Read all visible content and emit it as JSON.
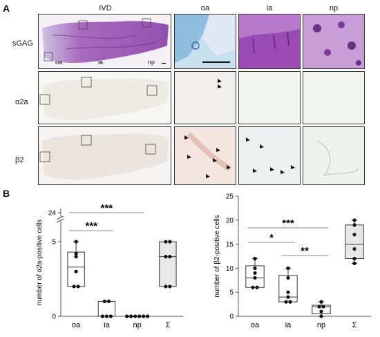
{
  "panel_a": {
    "letter": "A",
    "columns": [
      "IVD",
      "oa",
      "ia",
      "np"
    ],
    "rows": [
      "sGAG",
      "α2a",
      "β2"
    ],
    "ivd_region_labels": [
      "oa",
      "ia",
      "np"
    ]
  },
  "panel_b": {
    "letter": "B"
  },
  "chart_data": [
    {
      "type": "box",
      "ylabel": "number of α2a-positive cells",
      "categories": [
        "oa",
        "ia",
        "np",
        "Σ"
      ],
      "yticks": [
        "0",
        "5",
        "24"
      ],
      "axis_break": true,
      "ylim": [
        0,
        25
      ],
      "points": {
        "oa": [
          5,
          4.2,
          4,
          3,
          2,
          2
        ],
        "ia": [
          1,
          1,
          0,
          0,
          0
        ],
        "np": [
          0,
          0,
          0,
          0,
          0,
          0
        ],
        "Σ": [
          5,
          5,
          4,
          4,
          2,
          2
        ]
      },
      "boxes": {
        "oa": {
          "q1": 2,
          "median": 3.3,
          "q3": 4.3,
          "min": 2,
          "max": 5
        },
        "ia": {
          "q1": 0,
          "median": 0,
          "q3": 1,
          "min": 0,
          "max": 1
        },
        "np": {
          "q1": 0,
          "median": 0,
          "q3": 0,
          "min": 0,
          "max": 0
        },
        "Σ": {
          "q1": 2,
          "median": 4,
          "q3": 5,
          "min": 2,
          "max": 5
        }
      },
      "significance": [
        {
          "from": "oa",
          "to": "np",
          "label": "***"
        },
        {
          "from": "oa",
          "to": "ia",
          "label": "***"
        }
      ]
    },
    {
      "type": "box",
      "ylabel": "number of β2-positive cells",
      "categories": [
        "oa",
        "ia",
        "np",
        "Σ"
      ],
      "yticks": [
        "0",
        "5",
        "10",
        "15",
        "20",
        "25"
      ],
      "ylim": [
        0,
        25
      ],
      "points": {
        "oa": [
          12,
          10,
          9,
          8,
          6,
          6
        ],
        "ia": [
          10,
          8,
          5,
          4,
          3,
          3
        ],
        "np": [
          3,
          2,
          2,
          1,
          0
        ],
        "Σ": [
          20,
          19,
          17,
          14,
          12,
          11
        ]
      },
      "boxes": {
        "oa": {
          "q1": 6,
          "median": 8,
          "q3": 10.5,
          "min": 6,
          "max": 12
        },
        "ia": {
          "q1": 3,
          "median": 4,
          "q3": 8.5,
          "min": 3,
          "max": 10
        },
        "np": {
          "q1": 0.5,
          "median": 2,
          "q3": 2.3,
          "min": 0,
          "max": 3
        },
        "Σ": {
          "q1": 12,
          "median": 15,
          "q3": 19,
          "min": 11,
          "max": 20
        }
      },
      "significance": [
        {
          "from": "oa",
          "to": "np",
          "label": "***"
        },
        {
          "from": "oa",
          "to": "ia",
          "label": "*"
        },
        {
          "from": "ia",
          "to": "np",
          "label": "**"
        }
      ]
    }
  ]
}
